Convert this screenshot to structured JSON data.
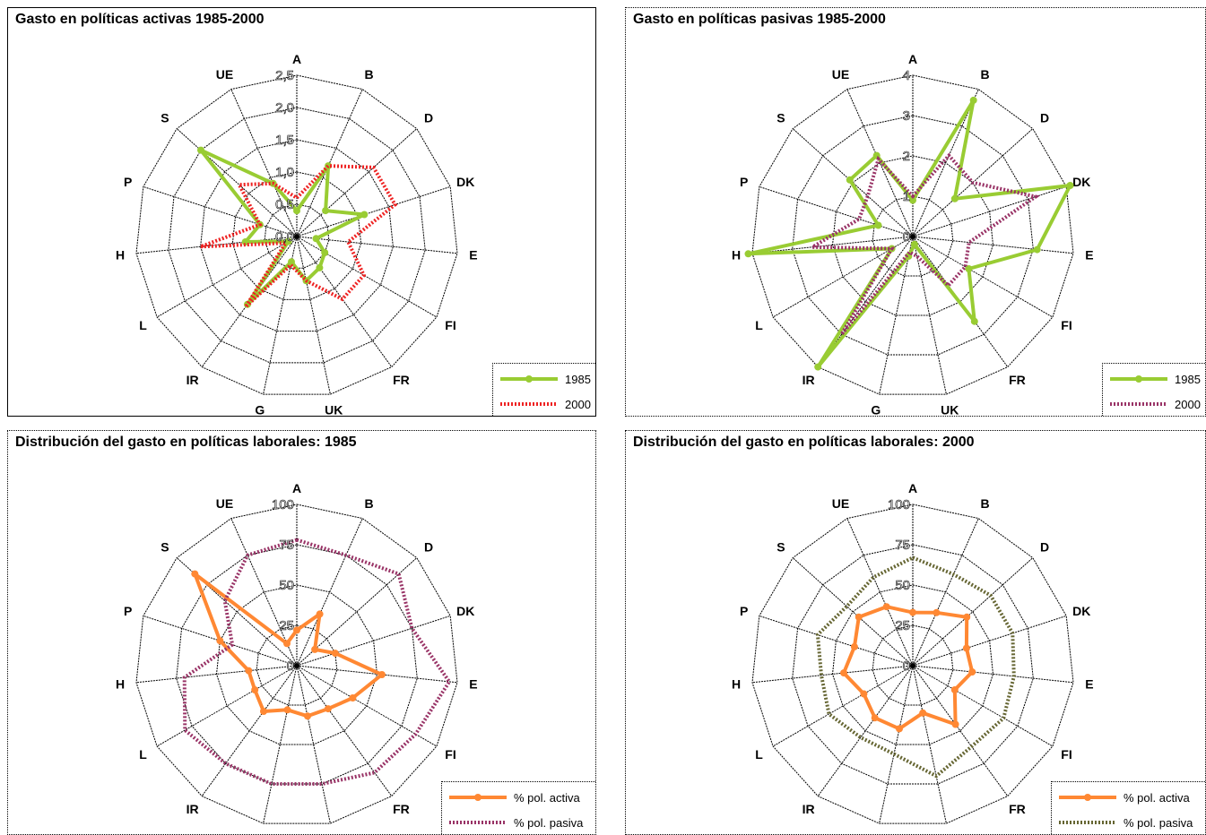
{
  "categories": [
    "A",
    "B",
    "D",
    "DK",
    "E",
    "FI",
    "FR",
    "UK",
    "G",
    "IR",
    "L",
    "H",
    "P",
    "S",
    "UE"
  ],
  "colors": {
    "green": "#99cc33",
    "red": "#ee2222",
    "purple": "#993366",
    "orange": "#ff8833",
    "darkred": "#993333",
    "olive": "#666633",
    "grid": "#000000"
  },
  "chart_data": [
    {
      "type": "radar",
      "title": "Gasto en políticas activas 1985-2000",
      "rmax": 2.5,
      "ticks": [
        "0,0",
        "0,5",
        "1,0",
        "1,5",
        "2,0",
        "2,5"
      ],
      "tick_values": [
        0,
        0.5,
        1.0,
        1.5,
        2.0,
        2.5
      ],
      "legend": "bottom-right",
      "series": [
        {
          "name": "1985",
          "style": "solid-marker",
          "color": "#99cc33",
          "values": [
            0.4,
            1.2,
            0.6,
            1.1,
            0.3,
            0.5,
            0.6,
            0.7,
            0.4,
            1.3,
            0.15,
            0.8,
            0.6,
            2.0,
            0.9
          ]
        },
        {
          "name": "2000",
          "style": "dotted",
          "color": "#ee2222",
          "values": [
            0.6,
            1.2,
            1.6,
            1.6,
            0.8,
            1.2,
            1.2,
            0.7,
            0.45,
            1.35,
            0.2,
            1.5,
            0.6,
            1.2,
            0.9
          ]
        }
      ]
    },
    {
      "type": "radar",
      "title": "Gasto en políticas pasivas 1985-2000",
      "rmax": 4,
      "ticks": [
        "0",
        "1",
        "2",
        "3",
        "4"
      ],
      "tick_values": [
        0,
        1,
        2,
        3,
        4
      ],
      "legend": "bottom-right",
      "series": [
        {
          "name": "1985",
          "style": "solid-marker",
          "color": "#99cc33",
          "values": [
            0.9,
            3.7,
            1.4,
            4.1,
            3.1,
            1.6,
            2.6,
            0.2,
            0.5,
            4.0,
            0.6,
            4.1,
            0.9,
            2.1,
            2.2
          ]
        },
        {
          "name": "2000",
          "style": "dotted",
          "color": "#993366",
          "values": [
            1.0,
            2.2,
            2.0,
            3.2,
            1.4,
            1.5,
            1.5,
            0.5,
            0.4,
            3.0,
            0.6,
            2.5,
            1.4,
            1.5,
            2.1
          ]
        }
      ]
    },
    {
      "type": "radar",
      "title": "Distribución del gasto en políticas laborales: 1985",
      "rmax": 100,
      "ticks": [
        "0",
        "25",
        "50",
        "75",
        "100"
      ],
      "tick_values": [
        0,
        25,
        50,
        75,
        100
      ],
      "legend": "bottom-right",
      "series": [
        {
          "name": "% pol. activa",
          "style": "solid-marker",
          "color": "#ff8833",
          "values": [
            22,
            35,
            15,
            25,
            53,
            40,
            33,
            32,
            28,
            35,
            30,
            30,
            50,
            85,
            15
          ]
        },
        {
          "name": "% pol. pasiva",
          "style": "dotted",
          "color": "#993366",
          "values": [
            78,
            75,
            85,
            75,
            95,
            85,
            82,
            75,
            75,
            75,
            80,
            70,
            42,
            60,
            75
          ]
        }
      ]
    },
    {
      "type": "radar",
      "title": "Distribución del gasto en políticas laborales: 2000",
      "rmax": 100,
      "ticks": [
        "0",
        "25",
        "50",
        "75",
        "100"
      ],
      "tick_values": [
        0,
        25,
        50,
        75,
        100
      ],
      "legend": "bottom-right",
      "series": [
        {
          "name": "% pol. activa",
          "style": "solid-marker",
          "color": "#ff8833",
          "values": [
            33,
            36,
            45,
            35,
            37,
            30,
            45,
            30,
            40,
            40,
            35,
            43,
            38,
            45,
            40
          ]
        },
        {
          "name": "% pol. pasiva",
          "style": "dotted",
          "color": "#666633",
          "values": [
            67,
            62,
            65,
            65,
            63,
            65,
            62,
            70,
            56,
            55,
            60,
            57,
            62,
            55,
            60
          ]
        }
      ]
    }
  ]
}
